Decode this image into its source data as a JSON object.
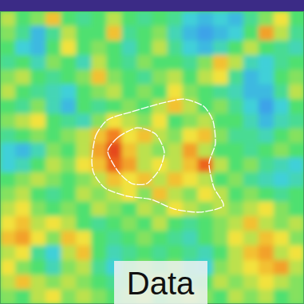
{
  "chart_data": {
    "type": "heatmap",
    "title": "Data",
    "tick_labels": false,
    "xlim": [
      0,
      20
    ],
    "ylim": [
      0,
      20
    ],
    "zlim": [
      0,
      1
    ],
    "cells": [
      [
        0.6,
        0.5,
        0.55,
        0.7,
        0.5,
        0.45,
        0.5,
        0.6,
        0.5,
        0.45,
        0.5,
        0.45,
        0.35,
        0.3,
        0.35,
        0.3,
        0.45,
        0.55,
        0.65,
        0.5
      ],
      [
        0.55,
        0.45,
        0.3,
        0.45,
        0.6,
        0.5,
        0.5,
        0.7,
        0.45,
        0.5,
        0.55,
        0.4,
        0.3,
        0.25,
        0.3,
        0.35,
        0.5,
        0.75,
        0.6,
        0.45
      ],
      [
        0.5,
        0.35,
        0.3,
        0.5,
        0.65,
        0.5,
        0.55,
        0.5,
        0.4,
        0.5,
        0.6,
        0.45,
        0.35,
        0.3,
        0.4,
        0.5,
        0.6,
        0.5,
        0.45,
        0.4
      ],
      [
        0.45,
        0.5,
        0.4,
        0.55,
        0.5,
        0.4,
        0.6,
        0.5,
        0.45,
        0.55,
        0.5,
        0.5,
        0.45,
        0.55,
        0.7,
        0.6,
        0.4,
        0.35,
        0.45,
        0.5
      ],
      [
        0.55,
        0.6,
        0.5,
        0.45,
        0.5,
        0.55,
        0.7,
        0.55,
        0.5,
        0.45,
        0.55,
        0.6,
        0.5,
        0.6,
        0.65,
        0.45,
        0.3,
        0.35,
        0.5,
        0.55
      ],
      [
        0.6,
        0.5,
        0.45,
        0.4,
        0.35,
        0.5,
        0.55,
        0.6,
        0.5,
        0.55,
        0.5,
        0.65,
        0.55,
        0.5,
        0.45,
        0.4,
        0.3,
        0.3,
        0.45,
        0.6
      ],
      [
        0.5,
        0.45,
        0.55,
        0.4,
        0.3,
        0.5,
        0.45,
        0.5,
        0.55,
        0.5,
        0.6,
        0.7,
        0.6,
        0.5,
        0.55,
        0.45,
        0.35,
        0.25,
        0.35,
        0.5
      ],
      [
        0.55,
        0.6,
        0.65,
        0.5,
        0.45,
        0.4,
        0.55,
        0.65,
        0.6,
        0.55,
        0.65,
        0.5,
        0.55,
        0.6,
        0.5,
        0.5,
        0.4,
        0.3,
        0.4,
        0.45
      ],
      [
        0.45,
        0.5,
        0.55,
        0.5,
        0.55,
        0.6,
        0.7,
        0.8,
        0.65,
        0.7,
        0.6,
        0.55,
        0.65,
        0.7,
        0.55,
        0.45,
        0.45,
        0.4,
        0.5,
        0.55
      ],
      [
        0.35,
        0.3,
        0.4,
        0.55,
        0.5,
        0.6,
        0.75,
        0.9,
        0.7,
        0.6,
        0.55,
        0.6,
        0.75,
        0.6,
        0.5,
        0.5,
        0.45,
        0.5,
        0.55,
        0.5
      ],
      [
        0.35,
        0.4,
        0.5,
        0.6,
        0.55,
        0.65,
        0.7,
        0.85,
        0.75,
        0.6,
        0.65,
        0.6,
        0.7,
        0.85,
        0.6,
        0.5,
        0.55,
        0.45,
        0.4,
        0.35
      ],
      [
        0.5,
        0.55,
        0.6,
        0.55,
        0.5,
        0.55,
        0.6,
        0.7,
        0.65,
        0.7,
        0.6,
        0.7,
        0.65,
        0.6,
        0.5,
        0.55,
        0.45,
        0.4,
        0.35,
        0.4
      ],
      [
        0.55,
        0.6,
        0.5,
        0.45,
        0.5,
        0.6,
        0.55,
        0.6,
        0.65,
        0.55,
        0.7,
        0.6,
        0.55,
        0.65,
        0.6,
        0.5,
        0.55,
        0.5,
        0.45,
        0.5
      ],
      [
        0.6,
        0.65,
        0.55,
        0.5,
        0.55,
        0.5,
        0.6,
        0.55,
        0.5,
        0.6,
        0.55,
        0.65,
        0.6,
        0.55,
        0.6,
        0.55,
        0.6,
        0.65,
        0.55,
        0.5
      ],
      [
        0.65,
        0.7,
        0.6,
        0.65,
        0.6,
        0.5,
        0.45,
        0.5,
        0.55,
        0.5,
        0.6,
        0.5,
        0.45,
        0.5,
        0.55,
        0.6,
        0.7,
        0.6,
        0.55,
        0.6
      ],
      [
        0.7,
        0.75,
        0.65,
        0.55,
        0.7,
        0.65,
        0.5,
        0.45,
        0.5,
        0.55,
        0.5,
        0.45,
        0.4,
        0.5,
        0.55,
        0.65,
        0.6,
        0.7,
        0.65,
        0.55
      ],
      [
        0.6,
        0.65,
        0.45,
        0.35,
        0.6,
        0.7,
        0.5,
        0.4,
        0.45,
        0.5,
        0.45,
        0.5,
        0.45,
        0.4,
        0.5,
        0.6,
        0.7,
        0.75,
        0.6,
        0.65
      ],
      [
        0.65,
        0.55,
        0.5,
        0.4,
        0.55,
        0.6,
        0.45,
        0.35,
        0.5,
        0.55,
        0.5,
        0.55,
        0.4,
        0.35,
        0.55,
        0.6,
        0.65,
        0.7,
        0.75,
        0.6
      ],
      [
        0.6,
        0.7,
        0.6,
        0.55,
        0.6,
        0.55,
        0.5,
        0.45,
        0.5,
        0.55,
        0.6,
        0.5,
        0.45,
        0.5,
        0.6,
        0.55,
        0.6,
        0.65,
        0.6,
        0.55
      ],
      [
        0.55,
        0.5,
        0.6,
        0.65,
        0.55,
        0.6,
        0.55,
        0.5,
        0.55,
        0.6,
        0.5,
        0.55,
        0.6,
        0.55,
        0.5,
        0.6,
        0.55,
        0.6,
        0.5,
        0.55
      ]
    ],
    "contours": [
      [
        [
          6.04,
          10.14
        ],
        [
          6.3,
          8.5
        ],
        [
          7.09,
          7.41
        ],
        [
          8.66,
          6.87
        ],
        [
          10.5,
          6.32
        ],
        [
          12.07,
          6.0
        ],
        [
          13.39,
          6.49
        ],
        [
          14.02,
          7.52
        ],
        [
          14.17,
          9.05
        ],
        [
          13.75,
          10.41
        ],
        [
          14.07,
          12.04
        ],
        [
          14.7,
          13.3
        ],
        [
          13.12,
          13.73
        ],
        [
          11.44,
          13.51
        ],
        [
          9.97,
          12.86
        ],
        [
          8.4,
          12.64
        ],
        [
          6.93,
          12.1
        ],
        [
          6.19,
          11.12
        ]
      ],
      [
        [
          7.09,
          9.59
        ],
        [
          7.77,
          8.61
        ],
        [
          9.03,
          7.96
        ],
        [
          10.24,
          8.39
        ],
        [
          10.81,
          9.59
        ],
        [
          10.5,
          10.79
        ],
        [
          9.66,
          11.77
        ],
        [
          8.66,
          11.77
        ],
        [
          7.77,
          10.95
        ]
      ]
    ]
  }
}
